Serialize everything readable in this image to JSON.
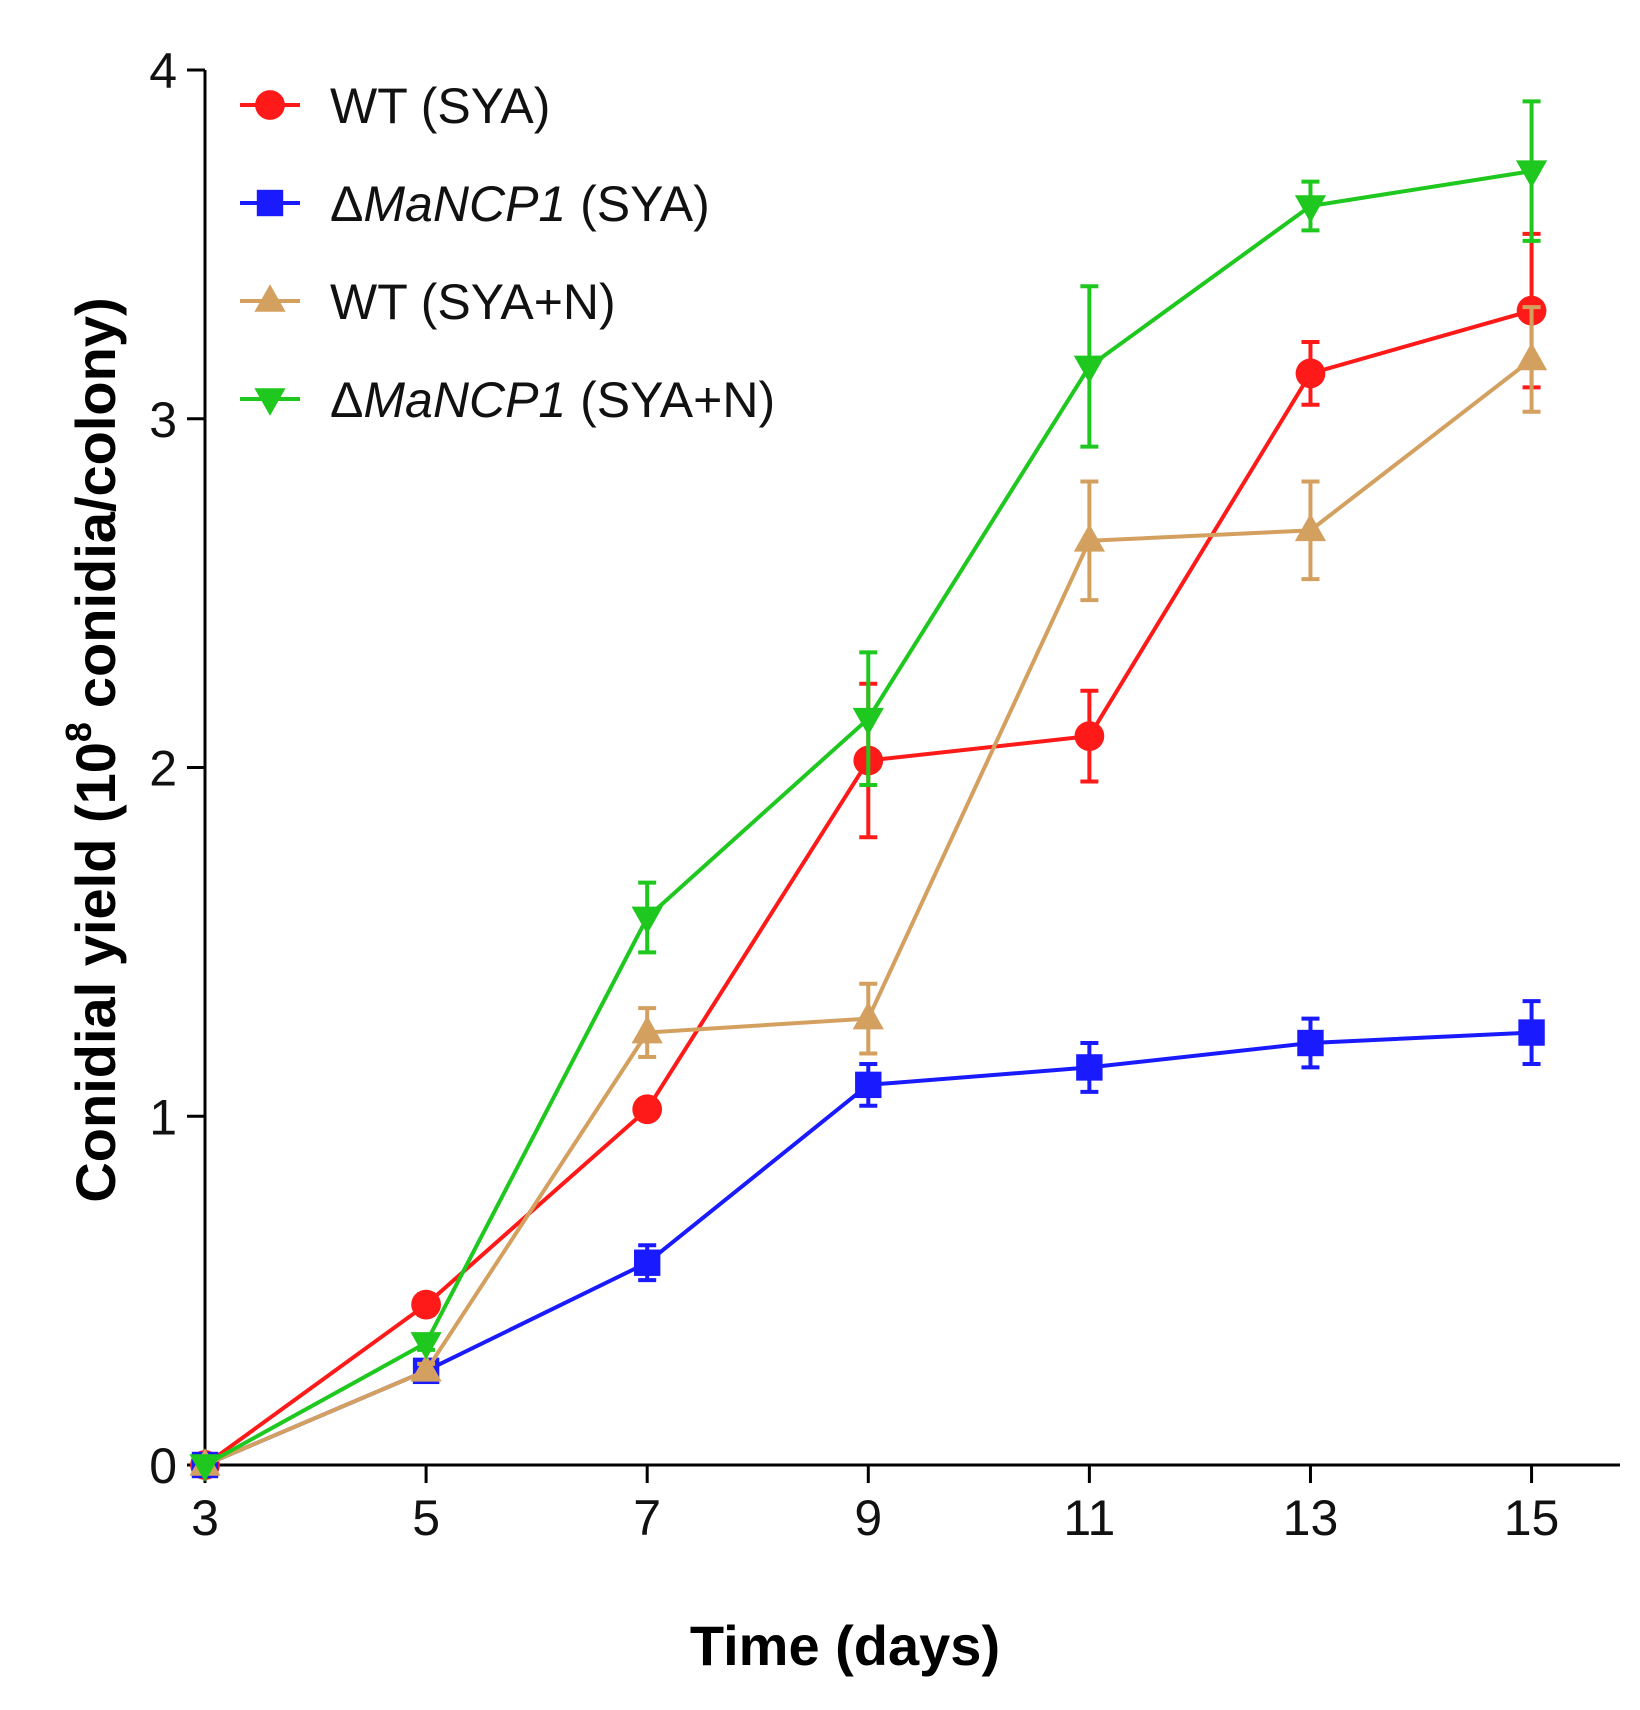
{
  "chart_data": {
    "type": "line",
    "title": "",
    "xlabel": "Time (days)",
    "ylabel_prefix": "Conidial yield (10",
    "ylabel_exponent": "8",
    "ylabel_suffix": "conidia/colony)",
    "xlim": [
      3,
      15.8
    ],
    "ylim": [
      0,
      4
    ],
    "x": [
      3,
      5,
      7,
      9,
      11,
      13,
      15
    ],
    "x_ticks": [
      "3",
      "5",
      "7",
      "9",
      "11",
      "13",
      "15"
    ],
    "y_ticks": [
      "0",
      "1",
      "2",
      "3",
      "4"
    ],
    "legend_position": "top-left",
    "series": [
      {
        "name": "WT (SYA)",
        "label_parts": [
          {
            "text": "WT (SYA)",
            "italic": false
          }
        ],
        "color": "#ff1a1a",
        "marker": "circle",
        "values": [
          0.0,
          0.46,
          1.02,
          2.02,
          2.09,
          3.13,
          3.31
        ],
        "errors": [
          0.0,
          0.03,
          0.02,
          0.22,
          0.13,
          0.09,
          0.22
        ]
      },
      {
        "name": "ΔMaNCP1 (SYA)",
        "label_parts": [
          {
            "text": "Δ",
            "italic": false
          },
          {
            "text": "MaNCP1",
            "italic": true
          },
          {
            "text": " (SYA)",
            "italic": false
          }
        ],
        "color": "#1a1aff",
        "marker": "square",
        "values": [
          0.0,
          0.27,
          0.58,
          1.09,
          1.14,
          1.21,
          1.24
        ],
        "errors": [
          0.0,
          0.02,
          0.05,
          0.06,
          0.07,
          0.07,
          0.09
        ]
      },
      {
        "name": "WT (SYA+N)",
        "label_parts": [
          {
            "text": "WT (SYA+N)",
            "italic": false
          }
        ],
        "color": "#d4a060",
        "marker": "triangle-up",
        "values": [
          0.0,
          0.27,
          1.24,
          1.28,
          2.65,
          2.68,
          3.17
        ],
        "errors": [
          0.0,
          0.02,
          0.07,
          0.1,
          0.17,
          0.14,
          0.15
        ]
      },
      {
        "name": "ΔMaNCP1 (SYA+N)",
        "label_parts": [
          {
            "text": "Δ",
            "italic": false
          },
          {
            "text": "MaNCP1",
            "italic": true
          },
          {
            "text": " (SYA+N)",
            "italic": false
          }
        ],
        "color": "#1ec81e",
        "marker": "triangle-down",
        "values": [
          0.0,
          0.35,
          1.57,
          2.14,
          3.15,
          3.61,
          3.71
        ],
        "errors": [
          0.0,
          0.02,
          0.1,
          0.19,
          0.23,
          0.07,
          0.2
        ]
      }
    ]
  }
}
